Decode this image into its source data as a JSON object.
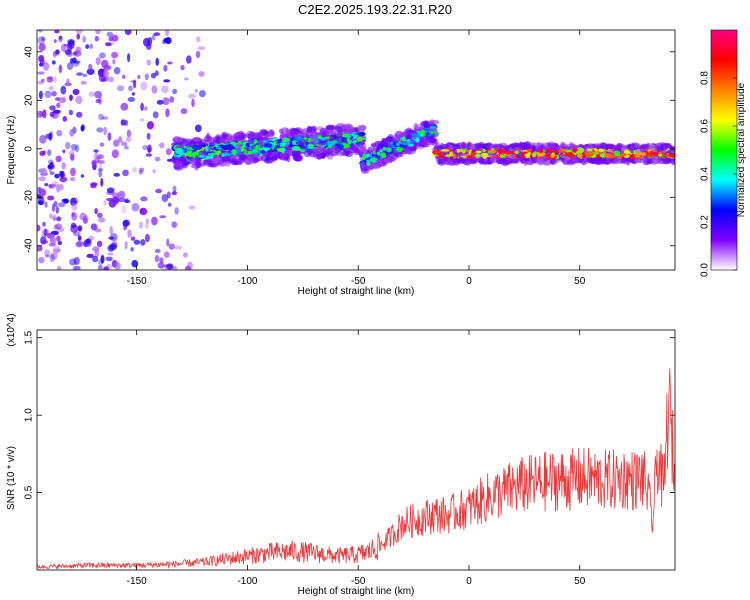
{
  "title": "C2E2.2025.193.22.31.R20",
  "chart_data": [
    {
      "type": "heatmap",
      "xlabel": "Height of straight line (km)",
      "ylabel": "Frequency (Hz)",
      "xlim": [
        -195,
        93
      ],
      "ylim": [
        -50,
        49
      ],
      "xticks": [
        -150,
        -100,
        -50,
        0,
        50
      ],
      "yticks": [
        -40,
        -20,
        0,
        20,
        40
      ],
      "colorbar": {
        "label": "Normalized spectral amplitude",
        "range": [
          0,
          1
        ],
        "ticks": [
          "0.0",
          "0.2",
          "0.4",
          "0.6",
          "0.8"
        ],
        "stops": [
          "#ffffff",
          "#8000ff",
          "#0000ff",
          "#00ffff",
          "#00ff00",
          "#ffff00",
          "#ff8000",
          "#ff0000",
          "#ff0080"
        ]
      },
      "features": [
        {
          "segment": "noise",
          "x": [
            -195,
            -120
          ],
          "freq_spread": [
            -50,
            49
          ],
          "amplitude": [
            0.05,
            0.25
          ]
        },
        {
          "segment": "signal",
          "x": [
            -133,
            -48
          ],
          "freq_center": [
            -2,
            4
          ],
          "freq_width": 10,
          "amplitude": [
            0.2,
            0.55
          ]
        },
        {
          "segment": "signal",
          "x": [
            -48,
            -15
          ],
          "freq_center": [
            -5,
            8
          ],
          "freq_width": 8,
          "amplitude": [
            0.2,
            0.5
          ]
        },
        {
          "segment": "signal",
          "x": [
            -15,
            93
          ],
          "freq_center": [
            -2,
            -2
          ],
          "freq_width": 6,
          "amplitude": [
            0.5,
            0.95
          ]
        }
      ]
    },
    {
      "type": "line",
      "xlabel": "Height of straight line (km)",
      "ylabel": "SNR (10 * v/v)",
      "y_multiplier": "(x10^4)",
      "xlim": [
        -195,
        93
      ],
      "ylim": [
        0,
        1.55
      ],
      "xticks": [
        -150,
        -100,
        -50,
        0,
        50
      ],
      "yticks": [
        0.5,
        1.0,
        1.5
      ],
      "color": "#e83a3a",
      "series": [
        {
          "x": [
            -195,
            -170,
            -150,
            -130,
            -120,
            -110,
            -100,
            -90,
            -80,
            -70,
            -60,
            -50,
            -45,
            -40,
            -35,
            -30,
            -25,
            -20,
            -15,
            -10,
            -5,
            0,
            5,
            10,
            15,
            20,
            25,
            30,
            35,
            40,
            45,
            50,
            55,
            60,
            65,
            70,
            75,
            78,
            80,
            83,
            85,
            88,
            90,
            93
          ],
          "values": [
            0.02,
            0.03,
            0.03,
            0.04,
            0.05,
            0.07,
            0.09,
            0.11,
            0.12,
            0.11,
            0.09,
            0.1,
            0.12,
            0.16,
            0.22,
            0.3,
            0.32,
            0.34,
            0.36,
            0.35,
            0.38,
            0.4,
            0.44,
            0.48,
            0.5,
            0.53,
            0.55,
            0.56,
            0.57,
            0.58,
            0.58,
            0.59,
            0.59,
            0.58,
            0.58,
            0.59,
            0.58,
            0.6,
            0.55,
            0.3,
            0.75,
            0.5,
            1.1,
            0.6
          ]
        }
      ]
    }
  ]
}
